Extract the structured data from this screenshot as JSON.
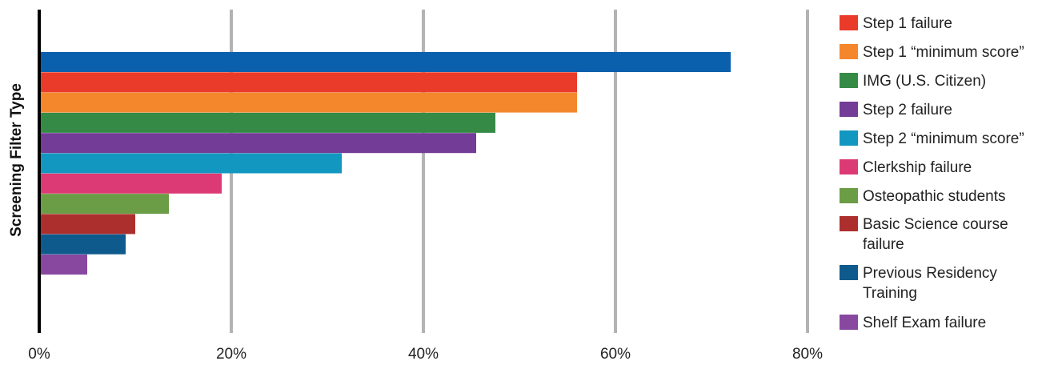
{
  "chart_data": {
    "type": "bar",
    "orientation": "horizontal",
    "ylabel": "Screening Filter Type",
    "xlabel": "",
    "xlim": [
      0,
      80
    ],
    "x_ticks": [
      "0%",
      "20%",
      "40%",
      "60%",
      "80%"
    ],
    "grid": true,
    "legend_position": "right",
    "bars": [
      {
        "value": 72,
        "color": "#0b60ad"
      },
      {
        "value": 56,
        "color": "#ea3b2a",
        "name": "Step 1 failure"
      },
      {
        "value": 56,
        "color": "#f4872c",
        "name": "Step 1 “minimum score”"
      },
      {
        "value": 47.5,
        "color": "#358b46",
        "name": "IMG (U.S. Citizen)"
      },
      {
        "value": 45.5,
        "color": "#733c97",
        "name": "Step 2 failure"
      },
      {
        "value": 31.5,
        "color": "#1197c0",
        "name": "Step 2 “minimum score”"
      },
      {
        "value": 19,
        "color": "#dc3a74",
        "name": "Clerkship failure"
      },
      {
        "value": 13.5,
        "color": "#6b9c46",
        "name": "Osteopathic students"
      },
      {
        "value": 10,
        "color": "#ac2f2e",
        "name": "Basic Science course failure"
      },
      {
        "value": 9,
        "color": "#0f5a8c",
        "name": "Previous Residency Training"
      },
      {
        "value": 5,
        "color": "#8848a0",
        "name": "Shelf Exam failure"
      }
    ]
  },
  "legend": {
    "items": [
      {
        "label": "Step 1 failure",
        "color": "#ea3b2a"
      },
      {
        "label": "Step 1 “minimum score”",
        "color": "#f4872c"
      },
      {
        "label": "IMG (U.S. Citizen)",
        "color": "#358b46"
      },
      {
        "label": "Step 2 failure",
        "color": "#733c97"
      },
      {
        "label": "Step 2 “minimum score”",
        "color": "#1197c0"
      },
      {
        "label": "Clerkship failure",
        "color": "#dc3a74"
      },
      {
        "label": "Osteopathic students",
        "color": "#6b9c46"
      },
      {
        "label": "Basic Science course failure",
        "color": "#ac2f2e"
      },
      {
        "label": "Previous Residency Training",
        "color": "#0f5a8c"
      },
      {
        "label": "Shelf Exam failure",
        "color": "#8848a0"
      }
    ]
  }
}
